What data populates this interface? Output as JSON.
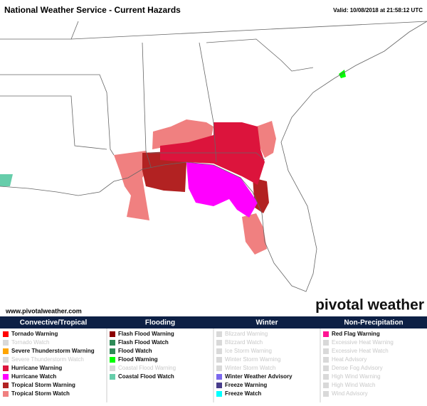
{
  "header": {
    "title": "National Weather Service - Current Hazards",
    "valid": "Valid: 10/08/2018 at 21:58:12 UTC"
  },
  "website": "www.pivotalweather.com",
  "brand": "pivotal weather",
  "legend": [
    {
      "title": "Convective/Tropical",
      "items": [
        {
          "label": "Tornado Warning",
          "color": "#ff0000",
          "active": true
        },
        {
          "label": "Tornado Watch",
          "color": "#d9d9d9",
          "active": false
        },
        {
          "label": "Severe Thunderstorm Warning",
          "color": "#ffa500",
          "active": true
        },
        {
          "label": "Severe Thunderstorm Watch",
          "color": "#d9d9d9",
          "active": false
        },
        {
          "label": "Hurricane Warning",
          "color": "#dc143c",
          "active": true
        },
        {
          "label": "Hurricane Watch",
          "color": "#ff00ff",
          "active": true
        },
        {
          "label": "Tropical Storm Warning",
          "color": "#b22222",
          "active": true
        },
        {
          "label": "Tropical Storm Watch",
          "color": "#f08080",
          "active": true
        }
      ]
    },
    {
      "title": "Flooding",
      "items": [
        {
          "label": "Flash Flood Warning",
          "color": "#8b0000",
          "active": true
        },
        {
          "label": "Flash Flood Watch",
          "color": "#2e8b57",
          "active": true
        },
        {
          "label": "Flood Watch",
          "color": "#2e8b57",
          "active": true
        },
        {
          "label": "Flood Warning",
          "color": "#00ff00",
          "active": true
        },
        {
          "label": "Coastal Flood Warning",
          "color": "#d9d9d9",
          "active": false
        },
        {
          "label": "Coastal Flood Watch",
          "color": "#66cdaa",
          "active": true
        }
      ]
    },
    {
      "title": "Winter",
      "items": [
        {
          "label": "Blizzard Warning",
          "color": "#d9d9d9",
          "active": false
        },
        {
          "label": "Blizzard Watch",
          "color": "#d9d9d9",
          "active": false
        },
        {
          "label": "Ice Storm Warning",
          "color": "#d9d9d9",
          "active": false
        },
        {
          "label": "Winter Storm Warning",
          "color": "#d9d9d9",
          "active": false
        },
        {
          "label": "Winter Storm Watch",
          "color": "#d9d9d9",
          "active": false
        },
        {
          "label": "Winter Weather Advisory",
          "color": "#7b68ee",
          "active": true
        },
        {
          "label": "Freeze Warning",
          "color": "#483d8b",
          "active": true
        },
        {
          "label": "Freeze Watch",
          "color": "#00ffff",
          "active": true
        }
      ]
    },
    {
      "title": "Non-Precipitation",
      "items": [
        {
          "label": "Red Flag Warning",
          "color": "#ff1493",
          "active": true
        },
        {
          "label": "Excessive Heat Warning",
          "color": "#d9d9d9",
          "active": false
        },
        {
          "label": "Excessive Heat Watch",
          "color": "#d9d9d9",
          "active": false
        },
        {
          "label": "Heat Advisory",
          "color": "#d9d9d9",
          "active": false
        },
        {
          "label": "Dense Fog Advisory",
          "color": "#d9d9d9",
          "active": false
        },
        {
          "label": "High Wind Warning",
          "color": "#d9d9d9",
          "active": false
        },
        {
          "label": "High Wind Watch",
          "color": "#d9d9d9",
          "active": false
        },
        {
          "label": "Wind Advisory",
          "color": "#d9d9d9",
          "active": false
        }
      ]
    }
  ]
}
